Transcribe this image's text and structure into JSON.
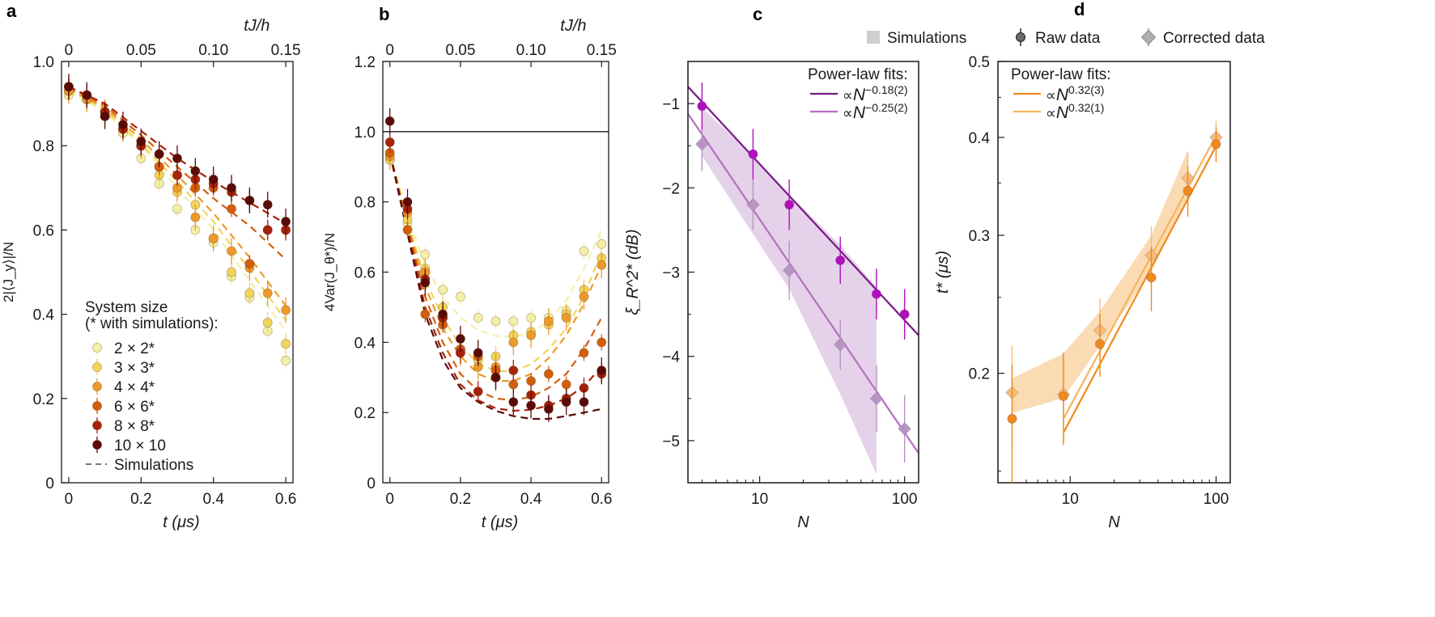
{
  "figure": {
    "panel_labels": [
      "a",
      "b",
      "c",
      "d"
    ],
    "top_legend": [
      {
        "key": "sim",
        "label": "Simulations"
      },
      {
        "key": "raw",
        "label": "Raw data"
      },
      {
        "key": "corr",
        "label": "Corrected data"
      }
    ]
  },
  "chart_data": [
    {
      "panel": "a",
      "type": "scatter",
      "ylabel": "2|⟨J_y⟩|/N",
      "xlabel": "t (μs)",
      "top_xlabel": "tJ/h",
      "xlim": [
        -0.02,
        0.62
      ],
      "ylim": [
        0,
        1.0
      ],
      "xticks": [
        0,
        0.2,
        0.4,
        0.6
      ],
      "xtick_labels": [
        "0",
        "0.2",
        "0.4",
        "0.6"
      ],
      "yticks": [
        0,
        0.2,
        0.4,
        0.6,
        0.8,
        1.0
      ],
      "ytick_labels": [
        "0",
        "0.2",
        "0.4",
        "0.6",
        "0.8",
        "1.0"
      ],
      "top_ticks": [
        0,
        0.05,
        0.1,
        0.15
      ],
      "top_tick_labels": [
        "0",
        "0.05",
        "0.10",
        "0.15"
      ],
      "legend_title": [
        "System size",
        "(* with simulations):"
      ],
      "legend_sim_label": "Simulations",
      "series": [
        {
          "name": "2 × 2*",
          "color": "#f4efa6",
          "sim": true,
          "x": [
            0,
            0.05,
            0.1,
            0.15,
            0.2,
            0.25,
            0.3,
            0.35,
            0.4,
            0.45,
            0.5,
            0.55,
            0.6
          ],
          "y": [
            0.92,
            0.91,
            0.87,
            0.83,
            0.77,
            0.71,
            0.65,
            0.6,
            0.57,
            0.49,
            0.44,
            0.36,
            0.29
          ],
          "sx": [
            0,
            0.1,
            0.2,
            0.3,
            0.4,
            0.5,
            0.6
          ],
          "sy": [
            0.93,
            0.88,
            0.8,
            0.7,
            0.6,
            0.48,
            0.36
          ]
        },
        {
          "name": "3 × 3*",
          "color": "#f1d55a",
          "sim": true,
          "x": [
            0,
            0.05,
            0.1,
            0.15,
            0.2,
            0.25,
            0.3,
            0.35,
            0.4,
            0.45,
            0.5,
            0.55,
            0.6
          ],
          "y": [
            0.93,
            0.91,
            0.87,
            0.84,
            0.8,
            0.73,
            0.69,
            0.66,
            0.58,
            0.5,
            0.45,
            0.38,
            0.33
          ],
          "sx": [
            0,
            0.1,
            0.2,
            0.3,
            0.4,
            0.5,
            0.6
          ],
          "sy": [
            0.935,
            0.885,
            0.805,
            0.715,
            0.62,
            0.505,
            0.385
          ]
        },
        {
          "name": "4 × 4*",
          "color": "#ed9a2a",
          "sim": true,
          "x": [
            0,
            0.05,
            0.1,
            0.15,
            0.2,
            0.25,
            0.3,
            0.35,
            0.4,
            0.45,
            0.5,
            0.55,
            0.6
          ],
          "y": [
            0.93,
            0.91,
            0.88,
            0.84,
            0.8,
            0.75,
            0.7,
            0.63,
            0.58,
            0.55,
            0.51,
            0.45,
            0.41
          ],
          "sx": [
            0,
            0.1,
            0.2,
            0.3,
            0.4,
            0.5,
            0.6
          ],
          "sy": [
            0.935,
            0.89,
            0.815,
            0.73,
            0.64,
            0.535,
            0.42
          ]
        },
        {
          "name": "6 × 6*",
          "color": "#d35f0c",
          "sim": true,
          "x": [
            0,
            0.05,
            0.1,
            0.15,
            0.2,
            0.25,
            0.3,
            0.35,
            0.4,
            0.45,
            0.5,
            0.55,
            0.6
          ],
          "y": [
            0.94,
            0.92,
            0.88,
            0.84,
            0.8,
            0.75,
            0.73,
            0.7,
            0.7,
            0.65,
            0.52,
            0.6,
            0.6
          ],
          "sx": [
            0,
            0.1,
            0.2,
            0.3,
            0.4,
            0.5,
            0.6
          ],
          "sy": [
            0.94,
            0.895,
            0.825,
            0.75,
            0.675,
            0.61,
            0.53
          ]
        },
        {
          "name": "8 × 8*",
          "color": "#a8220a",
          "sim": true,
          "x": [
            0,
            0.05,
            0.1,
            0.15,
            0.2,
            0.25,
            0.3,
            0.35,
            0.4,
            0.45,
            0.5,
            0.55,
            0.6
          ],
          "y": [
            0.94,
            0.92,
            0.88,
            0.84,
            0.8,
            0.78,
            0.73,
            0.72,
            0.71,
            0.69,
            0.67,
            0.6,
            0.6
          ],
          "sx": [
            0,
            0.1,
            0.2,
            0.3,
            0.4,
            0.5,
            0.6
          ],
          "sy": [
            0.94,
            0.9,
            0.835,
            0.77,
            0.715,
            0.665,
            0.615
          ]
        },
        {
          "name": "10 × 10",
          "color": "#5a0b08",
          "sim": false,
          "x": [
            0,
            0.05,
            0.1,
            0.15,
            0.2,
            0.25,
            0.3,
            0.35,
            0.4,
            0.45,
            0.5,
            0.55,
            0.6
          ],
          "y": [
            0.94,
            0.92,
            0.87,
            0.85,
            0.81,
            0.78,
            0.77,
            0.74,
            0.72,
            0.7,
            0.67,
            0.66,
            0.62
          ]
        }
      ]
    },
    {
      "panel": "b",
      "type": "scatter",
      "ylabel": "4Var(J_θ*)/N",
      "xlabel": "t (μs)",
      "top_xlabel": "tJ/h",
      "xlim": [
        -0.02,
        0.62
      ],
      "ylim": [
        0,
        1.2
      ],
      "xticks": [
        0,
        0.2,
        0.4,
        0.6
      ],
      "xtick_labels": [
        "0",
        "0.2",
        "0.4",
        "0.6"
      ],
      "yticks": [
        0,
        0.2,
        0.4,
        0.6,
        0.8,
        1.0,
        1.2
      ],
      "ytick_labels": [
        "0",
        "0.2",
        "0.4",
        "0.6",
        "0.8",
        "1.0",
        "1.2"
      ],
      "top_ticks": [
        0,
        0.05,
        0.1,
        0.15
      ],
      "top_tick_labels": [
        "0",
        "0.05",
        "0.10",
        "0.15"
      ],
      "hline": 1.0,
      "series": [
        {
          "name": "2 × 2*",
          "color": "#f4efa6",
          "x": [
            0,
            0.05,
            0.1,
            0.15,
            0.2,
            0.25,
            0.3,
            0.35,
            0.4,
            0.45,
            0.5,
            0.55,
            0.6
          ],
          "y": [
            0.92,
            0.74,
            0.65,
            0.55,
            0.53,
            0.47,
            0.46,
            0.46,
            0.47,
            0.47,
            0.49,
            0.66,
            0.68
          ],
          "sx": [
            0,
            0.05,
            0.1,
            0.15,
            0.2,
            0.25,
            0.3,
            0.35,
            0.4,
            0.45,
            0.5,
            0.55,
            0.6
          ],
          "sy": [
            0.94,
            0.76,
            0.62,
            0.53,
            0.47,
            0.435,
            0.418,
            0.415,
            0.428,
            0.46,
            0.52,
            0.61,
            0.72
          ]
        },
        {
          "name": "3 × 3*",
          "color": "#f1d55a",
          "x": [
            0,
            0.05,
            0.1,
            0.15,
            0.2,
            0.25,
            0.3,
            0.35,
            0.4,
            0.45,
            0.5,
            0.55,
            0.6
          ],
          "y": [
            0.92,
            0.75,
            0.61,
            0.5,
            0.38,
            0.35,
            0.36,
            0.42,
            0.43,
            0.45,
            0.48,
            0.55,
            0.64
          ],
          "sx": [
            0,
            0.05,
            0.1,
            0.15,
            0.2,
            0.25,
            0.3,
            0.35,
            0.4,
            0.45,
            0.5,
            0.55,
            0.6
          ],
          "sy": [
            0.94,
            0.745,
            0.58,
            0.47,
            0.39,
            0.34,
            0.318,
            0.318,
            0.338,
            0.38,
            0.44,
            0.53,
            0.66
          ]
        },
        {
          "name": "4 × 4*",
          "color": "#ed9a2a",
          "x": [
            0,
            0.05,
            0.1,
            0.15,
            0.2,
            0.25,
            0.3,
            0.35,
            0.4,
            0.45,
            0.5,
            0.55,
            0.6
          ],
          "y": [
            0.93,
            0.77,
            0.6,
            0.47,
            0.37,
            0.33,
            0.33,
            0.4,
            0.42,
            0.46,
            0.47,
            0.53,
            0.62
          ],
          "sx": [
            0,
            0.05,
            0.1,
            0.15,
            0.2,
            0.25,
            0.3,
            0.35,
            0.4,
            0.45,
            0.5,
            0.55,
            0.6
          ],
          "sy": [
            0.94,
            0.74,
            0.56,
            0.44,
            0.36,
            0.31,
            0.29,
            0.29,
            0.31,
            0.355,
            0.42,
            0.51,
            0.62
          ]
        },
        {
          "name": "6 × 6*",
          "color": "#d35f0c",
          "x": [
            0,
            0.05,
            0.1,
            0.15,
            0.2,
            0.25,
            0.3,
            0.35,
            0.4,
            0.45,
            0.5,
            0.55,
            0.6
          ],
          "y": [
            0.94,
            0.72,
            0.48,
            0.45,
            0.38,
            0.36,
            0.32,
            0.28,
            0.29,
            0.31,
            0.28,
            0.37,
            0.4
          ],
          "sx": [
            0,
            0.05,
            0.1,
            0.15,
            0.2,
            0.25,
            0.3,
            0.35,
            0.4,
            0.45,
            0.5,
            0.55,
            0.6
          ],
          "sy": [
            0.94,
            0.73,
            0.53,
            0.4,
            0.31,
            0.262,
            0.24,
            0.235,
            0.245,
            0.27,
            0.31,
            0.38,
            0.47
          ]
        },
        {
          "name": "8 × 8*",
          "color": "#a8220a",
          "x": [
            0,
            0.05,
            0.1,
            0.15,
            0.2,
            0.25,
            0.3,
            0.35,
            0.4,
            0.45,
            0.5,
            0.55,
            0.6
          ],
          "y": [
            0.97,
            0.78,
            0.58,
            0.47,
            0.37,
            0.26,
            0.3,
            0.32,
            0.25,
            0.22,
            0.24,
            0.27,
            0.31
          ],
          "sx": [
            0,
            0.05,
            0.1,
            0.15,
            0.2,
            0.25,
            0.3,
            0.35,
            0.4,
            0.45,
            0.5,
            0.55,
            0.6
          ],
          "sy": [
            0.94,
            0.72,
            0.5,
            0.37,
            0.28,
            0.235,
            0.212,
            0.205,
            0.208,
            0.22,
            0.24,
            0.275,
            0.33
          ]
        },
        {
          "name": "10 × 10",
          "color": "#5a0b08",
          "x": [
            0,
            0.05,
            0.1,
            0.15,
            0.2,
            0.25,
            0.3,
            0.35,
            0.4,
            0.45,
            0.5,
            0.55,
            0.6
          ],
          "y": [
            1.03,
            0.8,
            0.57,
            0.48,
            0.41,
            0.37,
            0.3,
            0.23,
            0.22,
            0.21,
            0.23,
            0.23,
            0.32
          ],
          "sx": [
            0,
            0.05,
            0.1,
            0.15,
            0.2,
            0.25,
            0.3,
            0.35,
            0.4,
            0.45,
            0.5,
            0.55,
            0.6
          ],
          "sy": [
            0.94,
            0.71,
            0.48,
            0.35,
            0.27,
            0.23,
            0.205,
            0.19,
            0.182,
            0.182,
            0.19,
            0.2,
            0.21
          ]
        }
      ]
    },
    {
      "panel": "c",
      "type": "scatter",
      "xscale": "log",
      "ylabel": "ξ_R^2* (dB)",
      "xlabel": "N",
      "xlim": [
        3.2,
        125
      ],
      "ylim": [
        -5.5,
        -0.5
      ],
      "xticks": [
        10,
        100
      ],
      "xtick_labels": [
        "10",
        "100"
      ],
      "yticks": [
        -1,
        -2,
        -3,
        -4,
        -5
      ],
      "ytick_labels": [
        "−1",
        "−2",
        "−3",
        "−4",
        "−5"
      ],
      "fits_title": "Power-law fits:",
      "fits": [
        {
          "base": "∝",
          "var": "N",
          "exp": "−0.18(2)",
          "color": "#7a1887",
          "x": [
            3.2,
            125
          ],
          "y": [
            -0.8,
            -3.75
          ]
        },
        {
          "base": "∝",
          "var": "N",
          "exp": "−0.25(2)",
          "color": "#b46fbe",
          "x": [
            3.2,
            125
          ],
          "y": [
            -1.12,
            -5.15
          ]
        }
      ],
      "band": {
        "color": "#dcc3e3",
        "x": [
          4,
          9,
          16,
          36,
          64
        ],
        "upper": [
          -1.05,
          -1.62,
          -2.08,
          -2.68,
          -3.18
        ],
        "lower": [
          -1.62,
          -2.55,
          -3.2,
          -4.45,
          -5.4
        ]
      },
      "raw": {
        "name": "Raw data",
        "color": "#b10fbf",
        "x": [
          4,
          9,
          16,
          36,
          64,
          100
        ],
        "y": [
          -1.03,
          -1.6,
          -2.2,
          -2.86,
          -3.26,
          -3.5
        ],
        "err": [
          0.28,
          0.3,
          0.3,
          0.28,
          0.3,
          0.3
        ]
      },
      "corrected": {
        "name": "Corrected data",
        "color": "#b894c0",
        "x": [
          4,
          9,
          16,
          36,
          64,
          100
        ],
        "y": [
          -1.48,
          -2.2,
          -2.98,
          -3.86,
          -4.5,
          -4.86
        ],
        "err": [
          0.32,
          0.3,
          0.35,
          0.3,
          0.4,
          0.4
        ]
      }
    },
    {
      "panel": "d",
      "type": "scatter",
      "xscale": "log",
      "yscale": "log",
      "ylabel": "t* (μs)",
      "xlabel": "N",
      "xlim": [
        3.2,
        125
      ],
      "ylim": [
        0.145,
        0.5
      ],
      "xticks": [
        10,
        100
      ],
      "xtick_labels": [
        "10",
        "100"
      ],
      "yticks": [
        0.2,
        0.3,
        0.4,
        0.5
      ],
      "ytick_labels": [
        "0.2",
        "0.3",
        "0.4",
        "0.5"
      ],
      "fits_title": "Power-law fits:",
      "fits": [
        {
          "base": "∝",
          "var": "N",
          "exp": "0.32(3)",
          "color": "#f08a1a",
          "x": [
            9,
            100
          ],
          "y": [
            0.168,
            0.39
          ]
        },
        {
          "base": "∝",
          "var": "N",
          "exp": "0.32(1)",
          "color": "#f7b45c",
          "x": [
            9,
            100
          ],
          "y": [
            0.175,
            0.402
          ]
        }
      ],
      "band": {
        "color": "#f8cf9a",
        "x": [
          4,
          9,
          16,
          36,
          64
        ],
        "upper": [
          0.197,
          0.212,
          0.24,
          0.3,
          0.385
        ],
        "lower": [
          0.178,
          0.186,
          0.217,
          0.27,
          0.335
        ]
      },
      "raw": {
        "name": "Raw data",
        "color": "#f08a1a",
        "x": [
          4,
          9,
          16,
          36,
          64,
          100
        ],
        "y": [
          0.175,
          0.187,
          0.218,
          0.265,
          0.342,
          0.392
        ],
        "err": [
          0.03,
          0.025,
          0.02,
          0.025,
          0.025,
          0.02
        ]
      },
      "corrected": {
        "name": "Corrected data",
        "color": "#f7bd78",
        "x": [
          4,
          9,
          16,
          36,
          64,
          100
        ],
        "y": [
          0.189,
          0.188,
          0.227,
          0.283,
          0.355,
          0.4
        ],
        "err": [
          0.028,
          0.025,
          0.022,
          0.025,
          0.028,
          0.02
        ]
      }
    }
  ]
}
